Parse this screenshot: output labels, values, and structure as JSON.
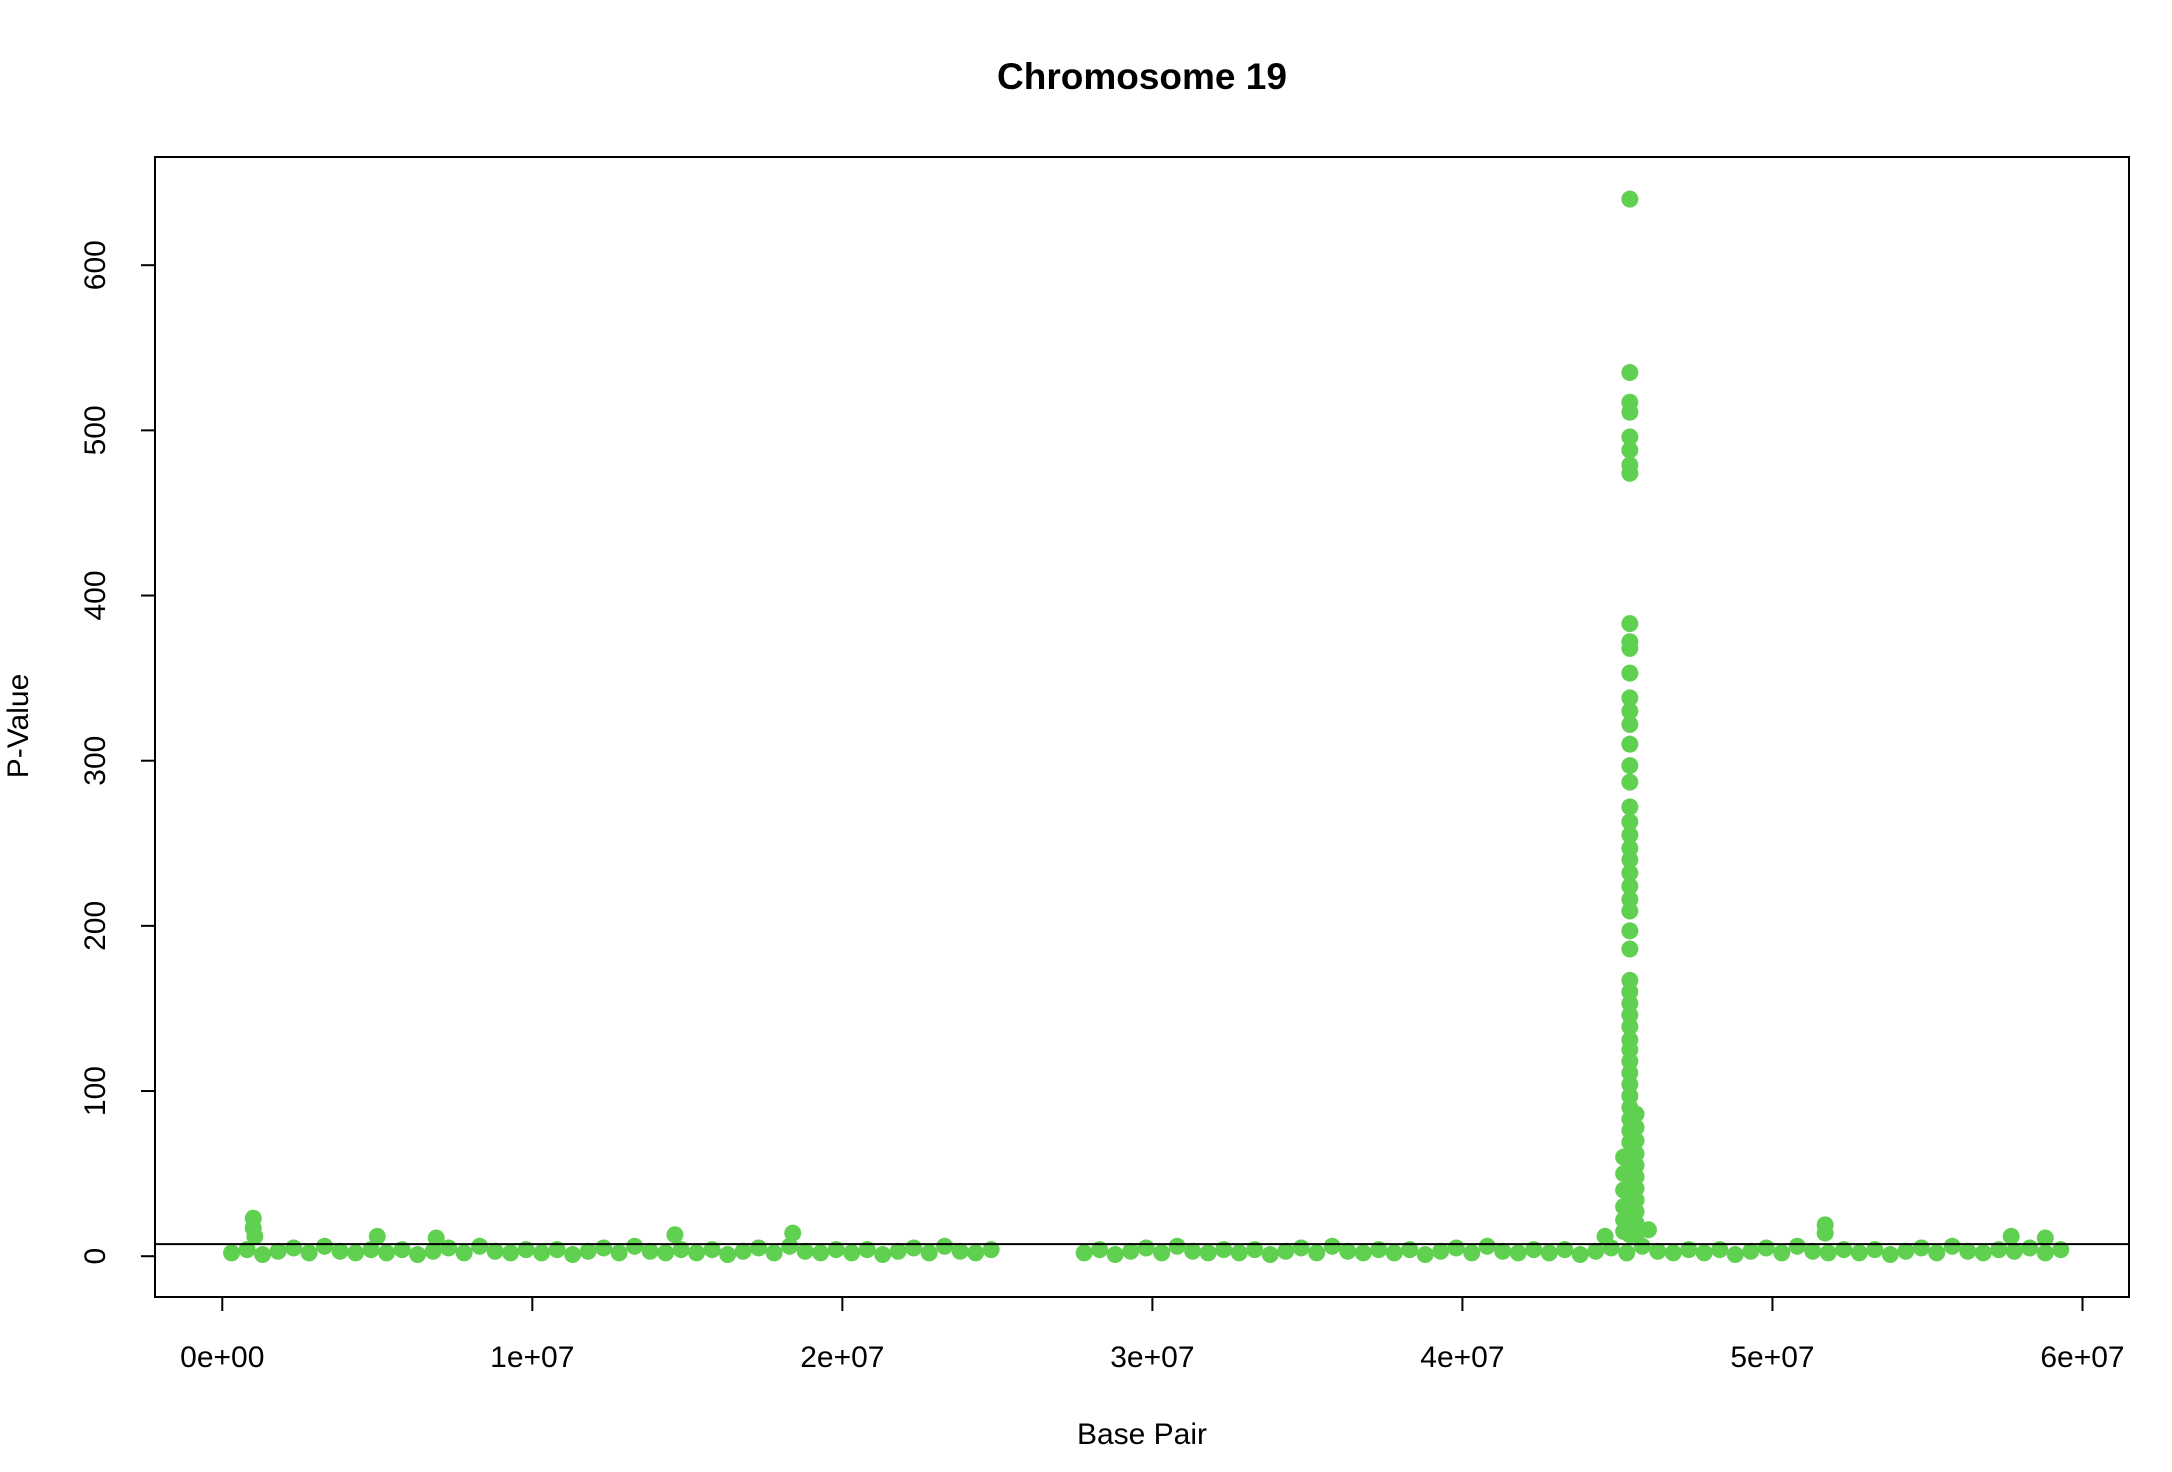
{
  "chart_data": {
    "type": "scatter",
    "title": "Chromosome 19",
    "xlabel": "Base Pair",
    "ylabel": "P-Value",
    "color": "#5fd04f",
    "x": [
      300000.0,
      800000.0,
      1300000.0,
      1800000.0,
      2300000.0,
      2800000.0,
      3300000.0,
      3800000.0,
      4300000.0,
      4800000.0,
      5300000.0,
      5800000.0,
      6300000.0,
      6800000.0,
      7300000.0,
      7800000.0,
      8300000.0,
      8800000.0,
      9300000.0,
      9800000.0,
      10300000.0,
      10800000.0,
      11300000.0,
      11800000.0,
      12300000.0,
      12800000.0,
      13300000.0,
      13800000.0,
      14300000.0,
      14800000.0,
      15300000.0,
      15800000.0,
      16300000.0,
      16800000.0,
      17300000.0,
      17800000.0,
      18300000.0,
      18800000.0,
      19300000.0,
      19800000.0,
      20300000.0,
      20800000.0,
      21300000.0,
      21800000.0,
      22300000.0,
      22800000.0,
      23300000.0,
      23800000.0,
      24300000.0,
      24800000.0,
      27800000.0,
      28300000.0,
      28800000.0,
      29300000.0,
      29800000.0,
      30300000.0,
      30800000.0,
      31300000.0,
      31800000.0,
      32300000.0,
      32800000.0,
      33300000.0,
      33800000.0,
      34300000.0,
      34800000.0,
      35300000.0,
      35800000.0,
      36300000.0,
      36800000.0,
      37300000.0,
      37800000.0,
      38300000.0,
      38800000.0,
      39300000.0,
      39800000.0,
      40300000.0,
      40800000.0,
      41300000.0,
      41800000.0,
      42300000.0,
      42800000.0,
      43300000.0,
      43800000.0,
      44300000.0,
      44800000.0,
      45300000.0,
      45800000.0,
      46300000.0,
      46800000.0,
      47300000.0,
      47800000.0,
      48300000.0,
      48800000.0,
      49300000.0,
      49800000.0,
      50300000.0,
      50800000.0,
      51300000.0,
      51800000.0,
      52300000.0,
      52800000.0,
      53300000.0,
      53800000.0,
      54300000.0,
      54800000.0,
      55300000.0,
      55800000.0,
      56300000.0,
      56800000.0,
      57300000.0,
      57800000.0,
      58300000.0,
      58800000.0,
      59300000.0,
      1000000.0,
      1000000.0,
      1050000.0,
      5000000.0,
      6900000.0,
      14600000.0,
      18400000.0,
      44600000.0,
      46000000.0,
      51700000.0,
      51700000.0,
      57700000.0,
      58800000.0,
      45400000.0,
      45400000.0,
      45400000.0,
      45400000.0,
      45400000.0,
      45400000.0,
      45400000.0,
      45400000.0,
      45400000.0,
      45400000.0,
      45400000.0,
      45400000.0,
      45400000.0,
      45400000.0,
      45400000.0,
      45400000.0,
      45400000.0,
      45400000.0,
      45400000.0,
      45400000.0,
      45400000.0,
      45400000.0,
      45400000.0,
      45400000.0,
      45400000.0,
      45400000.0,
      45400000.0,
      45400000.0,
      45400000.0,
      45400000.0,
      45400000.0,
      45400000.0,
      45400000.0,
      45400000.0,
      45400000.0,
      45400000.0,
      45400000.0,
      45400000.0,
      45400000.0,
      45400000.0,
      45400000.0,
      45400000.0,
      45400000.0,
      45400000.0,
      45400000.0,
      45400000.0,
      45400000.0,
      45400000.0,
      45400000.0,
      45400000.0,
      45400000.0,
      45400000.0,
      45600000.0,
      45600000.0,
      45600000.0,
      45600000.0,
      45600000.0,
      45600000.0,
      45600000.0,
      45600000.0,
      45600000.0,
      45600000.0,
      45600000.0,
      45200000.0,
      45200000.0,
      45200000.0,
      45200000.0,
      45200000.0,
      45200000.0
    ],
    "values": [
      2,
      4,
      1,
      3,
      5,
      2,
      6,
      3,
      2,
      4,
      2,
      4,
      1,
      3,
      5,
      2,
      6,
      3,
      2,
      4,
      2,
      4,
      1,
      3,
      5,
      2,
      6,
      3,
      2,
      4,
      2,
      4,
      1,
      3,
      5,
      2,
      6,
      3,
      2,
      4,
      2,
      4,
      1,
      3,
      5,
      2,
      6,
      3,
      2,
      4,
      2,
      4,
      1,
      3,
      5,
      2,
      6,
      3,
      2,
      4,
      2,
      4,
      1,
      3,
      5,
      2,
      6,
      3,
      2,
      4,
      2,
      4,
      1,
      3,
      5,
      2,
      6,
      3,
      2,
      4,
      2,
      4,
      1,
      3,
      5,
      2,
      6,
      3,
      2,
      4,
      2,
      4,
      1,
      3,
      5,
      2,
      6,
      3,
      2,
      4,
      2,
      4,
      1,
      3,
      5,
      2,
      6,
      3,
      2,
      4,
      3,
      5,
      2,
      4,
      23,
      17,
      12,
      12,
      11,
      13,
      14,
      12,
      16,
      19,
      14,
      12,
      11,
      640,
      535,
      517,
      511,
      496,
      488,
      479,
      474,
      383,
      372,
      368,
      353,
      338,
      330,
      322,
      310,
      297,
      287,
      272,
      263,
      255,
      247,
      240,
      232,
      224,
      216,
      209,
      197,
      186,
      167,
      160,
      153,
      146,
      139,
      131,
      125,
      118,
      111,
      104,
      97,
      90,
      83,
      76,
      69,
      62,
      55,
      48,
      41,
      34,
      27,
      20,
      13,
      86,
      78,
      70,
      62,
      55,
      48,
      41,
      34,
      27,
      20,
      13,
      60,
      50,
      40,
      30,
      22,
      15
    ],
    "hline": 7.3,
    "xlim": [
      -2170000,
      61500000
    ],
    "ylim": [
      -24.7,
      665.5
    ],
    "xticks": [
      {
        "value": 0,
        "label": "0e+00"
      },
      {
        "value": 10000000,
        "label": "1e+07"
      },
      {
        "value": 20000000,
        "label": "2e+07"
      },
      {
        "value": 30000000,
        "label": "3e+07"
      },
      {
        "value": 40000000,
        "label": "4e+07"
      },
      {
        "value": 50000000,
        "label": "5e+07"
      },
      {
        "value": 60000000,
        "label": "6e+07"
      }
    ],
    "yticks": [
      0,
      100,
      200,
      300,
      400,
      500,
      600
    ]
  }
}
